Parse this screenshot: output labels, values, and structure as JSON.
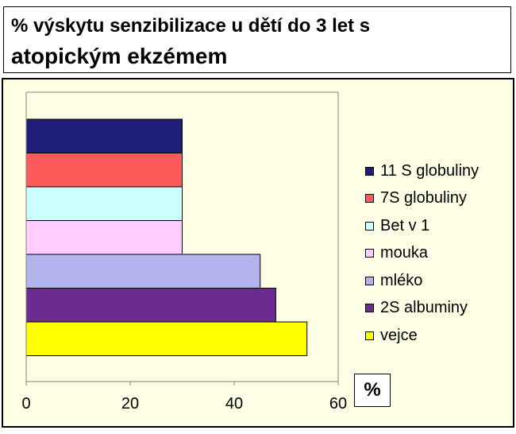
{
  "title": {
    "line1": "% výskytu senzibilizace u dětí do 3 let s",
    "line2": "atopickým ekzémem"
  },
  "unit_label": "%",
  "chart_data": {
    "type": "bar",
    "orientation": "horizontal",
    "title": "% výskytu senzibilizace u dětí do 3 let s atopickým ekzémem",
    "xlabel": "%",
    "ylabel": "",
    "xlim": [
      0,
      60
    ],
    "x_ticks": [
      0,
      20,
      40,
      60
    ],
    "grid": false,
    "legend_position": "right",
    "plot_background": "#ffffe5",
    "series": [
      {
        "name": "11 S globuliny",
        "value": 30,
        "color": "#1f1f7a"
      },
      {
        "name": "7S globuliny",
        "value": 30,
        "color": "#ff5a5a"
      },
      {
        "name": "Bet v 1",
        "value": 30,
        "color": "#ccffff"
      },
      {
        "name": "mouka",
        "value": 30,
        "color": "#ffccff"
      },
      {
        "name": "mléko",
        "value": 45,
        "color": "#b3b3ee"
      },
      {
        "name": "2S albuminy",
        "value": 48,
        "color": "#6b2b8f"
      },
      {
        "name": "vejce",
        "value": 54,
        "color": "#ffff00"
      }
    ]
  }
}
